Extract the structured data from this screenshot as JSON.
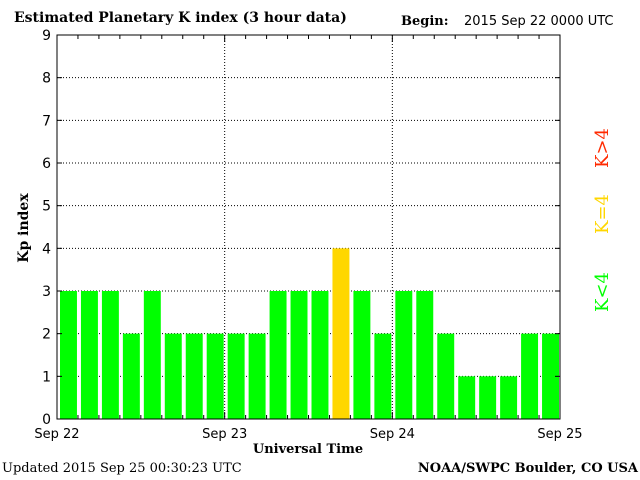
{
  "header": {
    "title": "Estimated Planetary K index (3 hour data)",
    "begin_label": "Begin:",
    "begin_value": "2015 Sep 22 0000 UTC"
  },
  "footer": {
    "updated": "Updated 2015 Sep 25 00:30:23 UTC",
    "credit": "NOAA/SWPC Boulder, CO USA"
  },
  "legend": {
    "low": "K<4",
    "equal": "K=4",
    "high": "K>4"
  },
  "colors": {
    "low": "#00ff00",
    "equal": "#ffd700",
    "high": "#ff2a00",
    "grid": "#000000"
  },
  "chart_data": {
    "type": "bar",
    "title": "Estimated Planetary K index (3 hour data)",
    "xlabel": "Universal Time",
    "ylabel": "Kp index",
    "ylim": [
      0,
      9
    ],
    "yticks": [
      0,
      1,
      2,
      3,
      4,
      5,
      6,
      7,
      8,
      9
    ],
    "xtick_labels": [
      "Sep 22",
      "Sep 23",
      "Sep 24",
      "Sep 25"
    ],
    "grid": true,
    "values": [
      3,
      3,
      3,
      2,
      3,
      2,
      2,
      2,
      2,
      2,
      3,
      3,
      3,
      4,
      3,
      2,
      3,
      3,
      2,
      1,
      1,
      1,
      2,
      2
    ]
  }
}
